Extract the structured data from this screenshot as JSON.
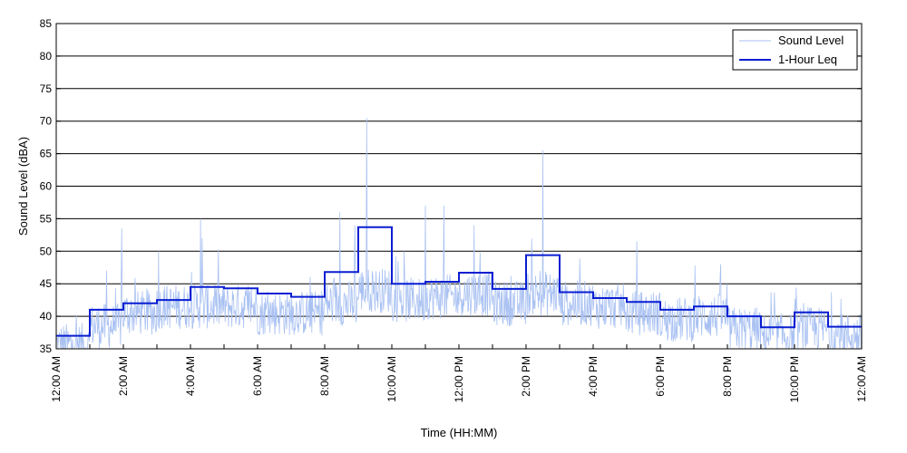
{
  "chart_data": {
    "type": "line",
    "title": "",
    "xlabel": "Time (HH:MM)",
    "ylabel": "Sound Level (dBA)",
    "ylim": [
      35,
      85
    ],
    "yticks": [
      35,
      40,
      45,
      50,
      55,
      60,
      65,
      70,
      75,
      80,
      85
    ],
    "xlim_hours": [
      0,
      24
    ],
    "xtick_labels": [
      "12:00 AM",
      "2:00 AM",
      "4:00 AM",
      "6:00 AM",
      "8:00 AM",
      "10:00 AM",
      "12:00 PM",
      "2:00 PM",
      "4:00 PM",
      "6:00 PM",
      "8:00 PM",
      "10:00 PM",
      "12:00 AM"
    ],
    "grid": "horizontal",
    "legend_position": "top-right",
    "series": [
      {
        "name": "Sound Level",
        "color": "#a9c1f2",
        "style": "thin-noisy-line",
        "hourly_mean": [
          35.5,
          38.5,
          40.5,
          41.5,
          41.5,
          41.5,
          40.5,
          40.5,
          42,
          44,
          42.5,
          43,
          43.5,
          42,
          43.5,
          42,
          41.5,
          40.5,
          39.5,
          40,
          38,
          37,
          38,
          37
        ],
        "spikes": [
          {
            "hour": 1.5,
            "value": 47
          },
          {
            "hour": 1.95,
            "value": 53.5
          },
          {
            "hour": 3.05,
            "value": 50
          },
          {
            "hour": 4.3,
            "value": 55
          },
          {
            "hour": 4.35,
            "value": 52
          },
          {
            "hour": 8.45,
            "value": 56
          },
          {
            "hour": 8.9,
            "value": 54
          },
          {
            "hour": 9.25,
            "value": 70.5
          },
          {
            "hour": 11.0,
            "value": 57
          },
          {
            "hour": 11.55,
            "value": 57
          },
          {
            "hour": 12.45,
            "value": 54
          },
          {
            "hour": 14.5,
            "value": 65.5
          },
          {
            "hour": 17.3,
            "value": 51.5
          },
          {
            "hour": 19.8,
            "value": 48
          }
        ]
      },
      {
        "name": "1-Hour Leq",
        "color": "#0a1ed2",
        "style": "step",
        "hours": [
          0,
          1,
          2,
          3,
          4,
          5,
          6,
          7,
          8,
          9,
          10,
          11,
          12,
          13,
          14,
          15,
          16,
          17,
          18,
          19,
          20,
          21,
          22,
          23
        ],
        "values": [
          37,
          41,
          42,
          42.5,
          44.5,
          44.3,
          43.5,
          43,
          46.8,
          53.7,
          45,
          45.3,
          46.7,
          44.2,
          49.4,
          43.7,
          42.8,
          42.2,
          41,
          41.5,
          40,
          38.3,
          40.6,
          38.4
        ]
      }
    ]
  }
}
